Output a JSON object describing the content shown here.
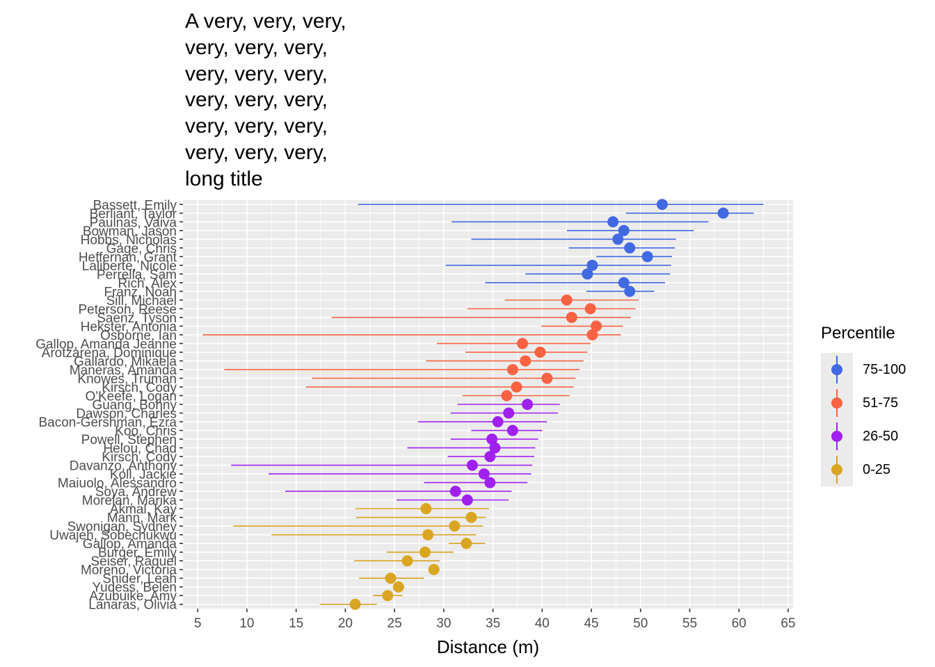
{
  "chart_data": {
    "type": "scatter",
    "title": "A very, very, very,\nvery, very, very,\nvery, very, very,\nvery, very, very,\nvery, very, very,\nvery, very, very,\nlong title",
    "xlabel": "Distance (m)",
    "ylabel": "",
    "xlim": [
      3.5,
      65.5
    ],
    "x_ticks": [
      5,
      10,
      15,
      20,
      25,
      30,
      35,
      40,
      45,
      50,
      55,
      60,
      65
    ],
    "grid": true,
    "legend": {
      "title": "Percentile",
      "placement": "right"
    },
    "series": [
      {
        "name": "75-100",
        "color": "#4169E1",
        "points": [
          {
            "label": "Bassett, Emily",
            "x": 52.2,
            "low": 21.3,
            "high": 62.5
          },
          {
            "label": "Berliant, Taylor",
            "x": 58.4,
            "low": 48.5,
            "high": 61.5
          },
          {
            "label": "Paulnas, Vaiva",
            "x": 47.2,
            "low": 30.8,
            "high": 56.9
          },
          {
            "label": "Bowman, Jason",
            "x": 48.3,
            "low": 42.5,
            "high": 55.4
          },
          {
            "label": "Hobbs, Nicholas",
            "x": 47.7,
            "low": 32.8,
            "high": 53.6
          },
          {
            "label": "Gage, Chris",
            "x": 48.9,
            "low": 42.7,
            "high": 53.5
          },
          {
            "label": "Heffernan, Grant",
            "x": 50.7,
            "low": 45.5,
            "high": 53.2
          },
          {
            "label": "Laliberte, Nicole",
            "x": 45.1,
            "low": 30.2,
            "high": 53.1
          },
          {
            "label": "Perrella, Sam",
            "x": 44.6,
            "low": 38.3,
            "high": 53.0
          },
          {
            "label": "Rich, Alex",
            "x": 48.3,
            "low": 34.2,
            "high": 52.5
          },
          {
            "label": "Franz, Noah",
            "x": 48.9,
            "low": 44.5,
            "high": 51.4
          }
        ]
      },
      {
        "name": "51-75",
        "color": "#FA6242",
        "points": [
          {
            "label": "Sill, Michael",
            "x": 42.5,
            "low": 36.2,
            "high": 49.8
          },
          {
            "label": "Peterson, Reese",
            "x": 44.9,
            "low": 32.4,
            "high": 49.5
          },
          {
            "label": "Saenz, Tyson",
            "x": 43.0,
            "low": 18.6,
            "high": 49.0
          },
          {
            "label": "Hekster, Antonia",
            "x": 45.5,
            "low": 39.9,
            "high": 48.2
          },
          {
            "label": "Osborne, Ian",
            "x": 45.1,
            "low": 5.5,
            "high": 48.0
          },
          {
            "label": "Gallop, Amanda Jeanne",
            "x": 38.0,
            "low": 29.3,
            "high": 44.9
          },
          {
            "label": "Arotzarena, Dominique",
            "x": 39.8,
            "low": 32.2,
            "high": 44.6
          },
          {
            "label": "Gallardo, Mikaela",
            "x": 38.3,
            "low": 28.2,
            "high": 44.2
          },
          {
            "label": "Maneras, Amanda",
            "x": 37.0,
            "low": 7.7,
            "high": 43.8
          },
          {
            "label": "Knowes, Truman",
            "x": 40.5,
            "low": 16.6,
            "high": 43.4
          },
          {
            "label": "Kirsch, Cody",
            "x": 37.4,
            "low": 16.0,
            "high": 43.2
          },
          {
            "label": "O'Keefe, Logan",
            "x": 36.4,
            "low": 31.9,
            "high": 42.8
          }
        ]
      },
      {
        "name": "26-50",
        "color": "#A020F0",
        "points": [
          {
            "label": "Guang, Bohny",
            "x": 38.5,
            "low": 31.4,
            "high": 41.8
          },
          {
            "label": "Dawson, Charles",
            "x": 36.6,
            "low": 30.7,
            "high": 41.6
          },
          {
            "label": "Bacon-Gershman, Ezra",
            "x": 35.5,
            "low": 27.4,
            "high": 40.5
          },
          {
            "label": "Koo, Chris",
            "x": 37.0,
            "low": 32.8,
            "high": 40.0
          },
          {
            "label": "Powell, Stephen",
            "x": 34.9,
            "low": 30.7,
            "high": 39.6
          },
          {
            "label": "Helou, Chad",
            "x": 35.2,
            "low": 26.3,
            "high": 39.3
          },
          {
            "label": "Kirsch, Cody",
            "x": 34.7,
            "low": 30.4,
            "high": 39.2
          },
          {
            "label": "Davanzo, Anthony",
            "x": 32.9,
            "low": 8.4,
            "high": 39.0
          },
          {
            "label": "Koll, Jackie",
            "x": 34.1,
            "low": 12.2,
            "high": 38.9
          },
          {
            "label": "Maiuolo, Alessandro",
            "x": 34.7,
            "low": 28.0,
            "high": 38.5
          },
          {
            "label": "Soya, Andrew",
            "x": 31.2,
            "low": 13.9,
            "high": 36.9
          },
          {
            "label": "Morelan, Marika",
            "x": 32.4,
            "low": 25.2,
            "high": 36.6
          }
        ]
      },
      {
        "name": "0-25",
        "color": "#DAA520",
        "points": [
          {
            "label": "Akmal, Kay",
            "x": 28.2,
            "low": 21.0,
            "high": 34.6
          },
          {
            "label": "Mann, Mark",
            "x": 32.8,
            "low": 21.1,
            "high": 34.3
          },
          {
            "label": "Swonigan, Sydney",
            "x": 31.1,
            "low": 8.6,
            "high": 34.0
          },
          {
            "label": "Uwajeh, Sobechukwu",
            "x": 28.4,
            "low": 12.5,
            "high": 33.3
          },
          {
            "label": "Gallop, Amanda",
            "x": 32.3,
            "low": 30.5,
            "high": 34.2
          },
          {
            "label": "Burger, Emily",
            "x": 28.1,
            "low": 24.2,
            "high": 31.0
          },
          {
            "label": "Seiser, Raquel",
            "x": 26.3,
            "low": 20.9,
            "high": 29.6
          },
          {
            "label": "Moreno, Victoria",
            "x": 29.0,
            "low": 28.6,
            "high": 29.3
          },
          {
            "label": "Snider, Leah",
            "x": 24.6,
            "low": 21.4,
            "high": 28.0
          },
          {
            "label": "Yudess, Belen",
            "x": 25.4,
            "low": 24.9,
            "high": 26.0
          },
          {
            "label": "Azubuike, Amy",
            "x": 24.3,
            "low": 22.8,
            "high": 25.8
          },
          {
            "label": "Lanaras, Olivia",
            "x": 21.0,
            "low": 17.4,
            "high": 23.2
          }
        ]
      }
    ]
  }
}
